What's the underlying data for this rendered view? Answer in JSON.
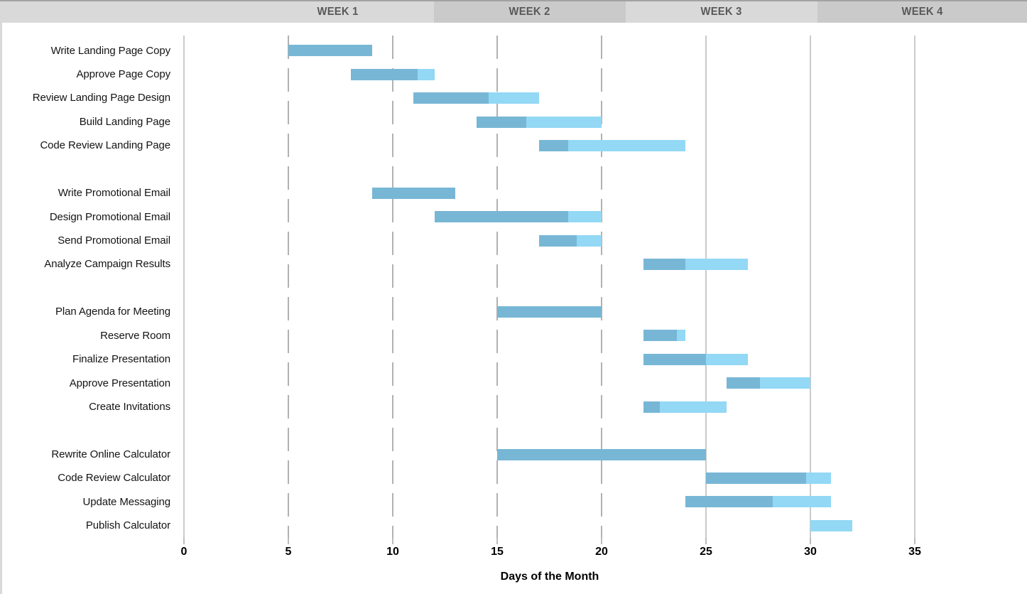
{
  "header": {
    "weeks": [
      {
        "label": "WEEK 1"
      },
      {
        "label": "WEEK 2"
      },
      {
        "label": "WEEK 3"
      },
      {
        "label": "WEEK 4"
      }
    ],
    "colors": {
      "band_light": "#d9d9d9",
      "band_dark": "#cacaca",
      "text": "#595959",
      "top_edge": "#a2a2a2"
    }
  },
  "chart_data": {
    "type": "bar",
    "subtype": "gantt",
    "title": "",
    "xlabel": "Days of the Month",
    "ylabel": "",
    "xlim": [
      0,
      40
    ],
    "x_ticks": [
      0,
      5,
      10,
      15,
      20,
      25,
      30,
      35
    ],
    "grid": {
      "dashed_days": [
        5,
        10,
        15,
        20
      ],
      "solid_days": [
        0,
        25,
        30,
        35
      ]
    },
    "legend": null,
    "colors": {
      "complete": "#77b7d5",
      "remaining": "#93d8f5",
      "grid_dashed": "#b1b1b1",
      "grid_solid": "#cbcbcb",
      "label_text": "#141414"
    },
    "tasks": [
      {
        "label": "Write Landing Page Copy",
        "group": 1,
        "start": 5,
        "end": 9,
        "percent_complete": 100
      },
      {
        "label": "Approve Page Copy",
        "group": 1,
        "start": 8,
        "end": 12,
        "percent_complete": 80
      },
      {
        "label": "Review Landing Page Design",
        "group": 1,
        "start": 11,
        "end": 17,
        "percent_complete": 60
      },
      {
        "label": "Build Landing Page",
        "group": 1,
        "start": 14,
        "end": 20,
        "percent_complete": 40
      },
      {
        "label": "Code Review Landing Page",
        "group": 1,
        "start": 17,
        "end": 24,
        "percent_complete": 20
      },
      {
        "label": "Write Promotional Email",
        "group": 2,
        "start": 9,
        "end": 13,
        "percent_complete": 100
      },
      {
        "label": "Design Promotional Email",
        "group": 2,
        "start": 12,
        "end": 20,
        "percent_complete": 80
      },
      {
        "label": "Send Promotional Email",
        "group": 2,
        "start": 17,
        "end": 20,
        "percent_complete": 60
      },
      {
        "label": "Analyze Campaign Results",
        "group": 2,
        "start": 22,
        "end": 27,
        "percent_complete": 40
      },
      {
        "label": "Plan Agenda for Meeting",
        "group": 3,
        "start": 15,
        "end": 20,
        "percent_complete": 100
      },
      {
        "label": "Reserve Room",
        "group": 3,
        "start": 22,
        "end": 24,
        "percent_complete": 80
      },
      {
        "label": "Finalize Presentation",
        "group": 3,
        "start": 22,
        "end": 27,
        "percent_complete": 60
      },
      {
        "label": "Approve Presentation",
        "group": 3,
        "start": 26,
        "end": 30,
        "percent_complete": 40
      },
      {
        "label": "Create Invitations",
        "group": 3,
        "start": 22,
        "end": 26,
        "percent_complete": 20
      },
      {
        "label": "Rewrite Online Calculator",
        "group": 4,
        "start": 15,
        "end": 25,
        "percent_complete": 100
      },
      {
        "label": "Code Review Calculator",
        "group": 4,
        "start": 25,
        "end": 31,
        "percent_complete": 80
      },
      {
        "label": "Update Messaging",
        "group": 4,
        "start": 24,
        "end": 31,
        "percent_complete": 60
      },
      {
        "label": "Publish Calculator",
        "group": 4,
        "start": 30,
        "end": 32,
        "percent_complete": 0
      }
    ]
  }
}
